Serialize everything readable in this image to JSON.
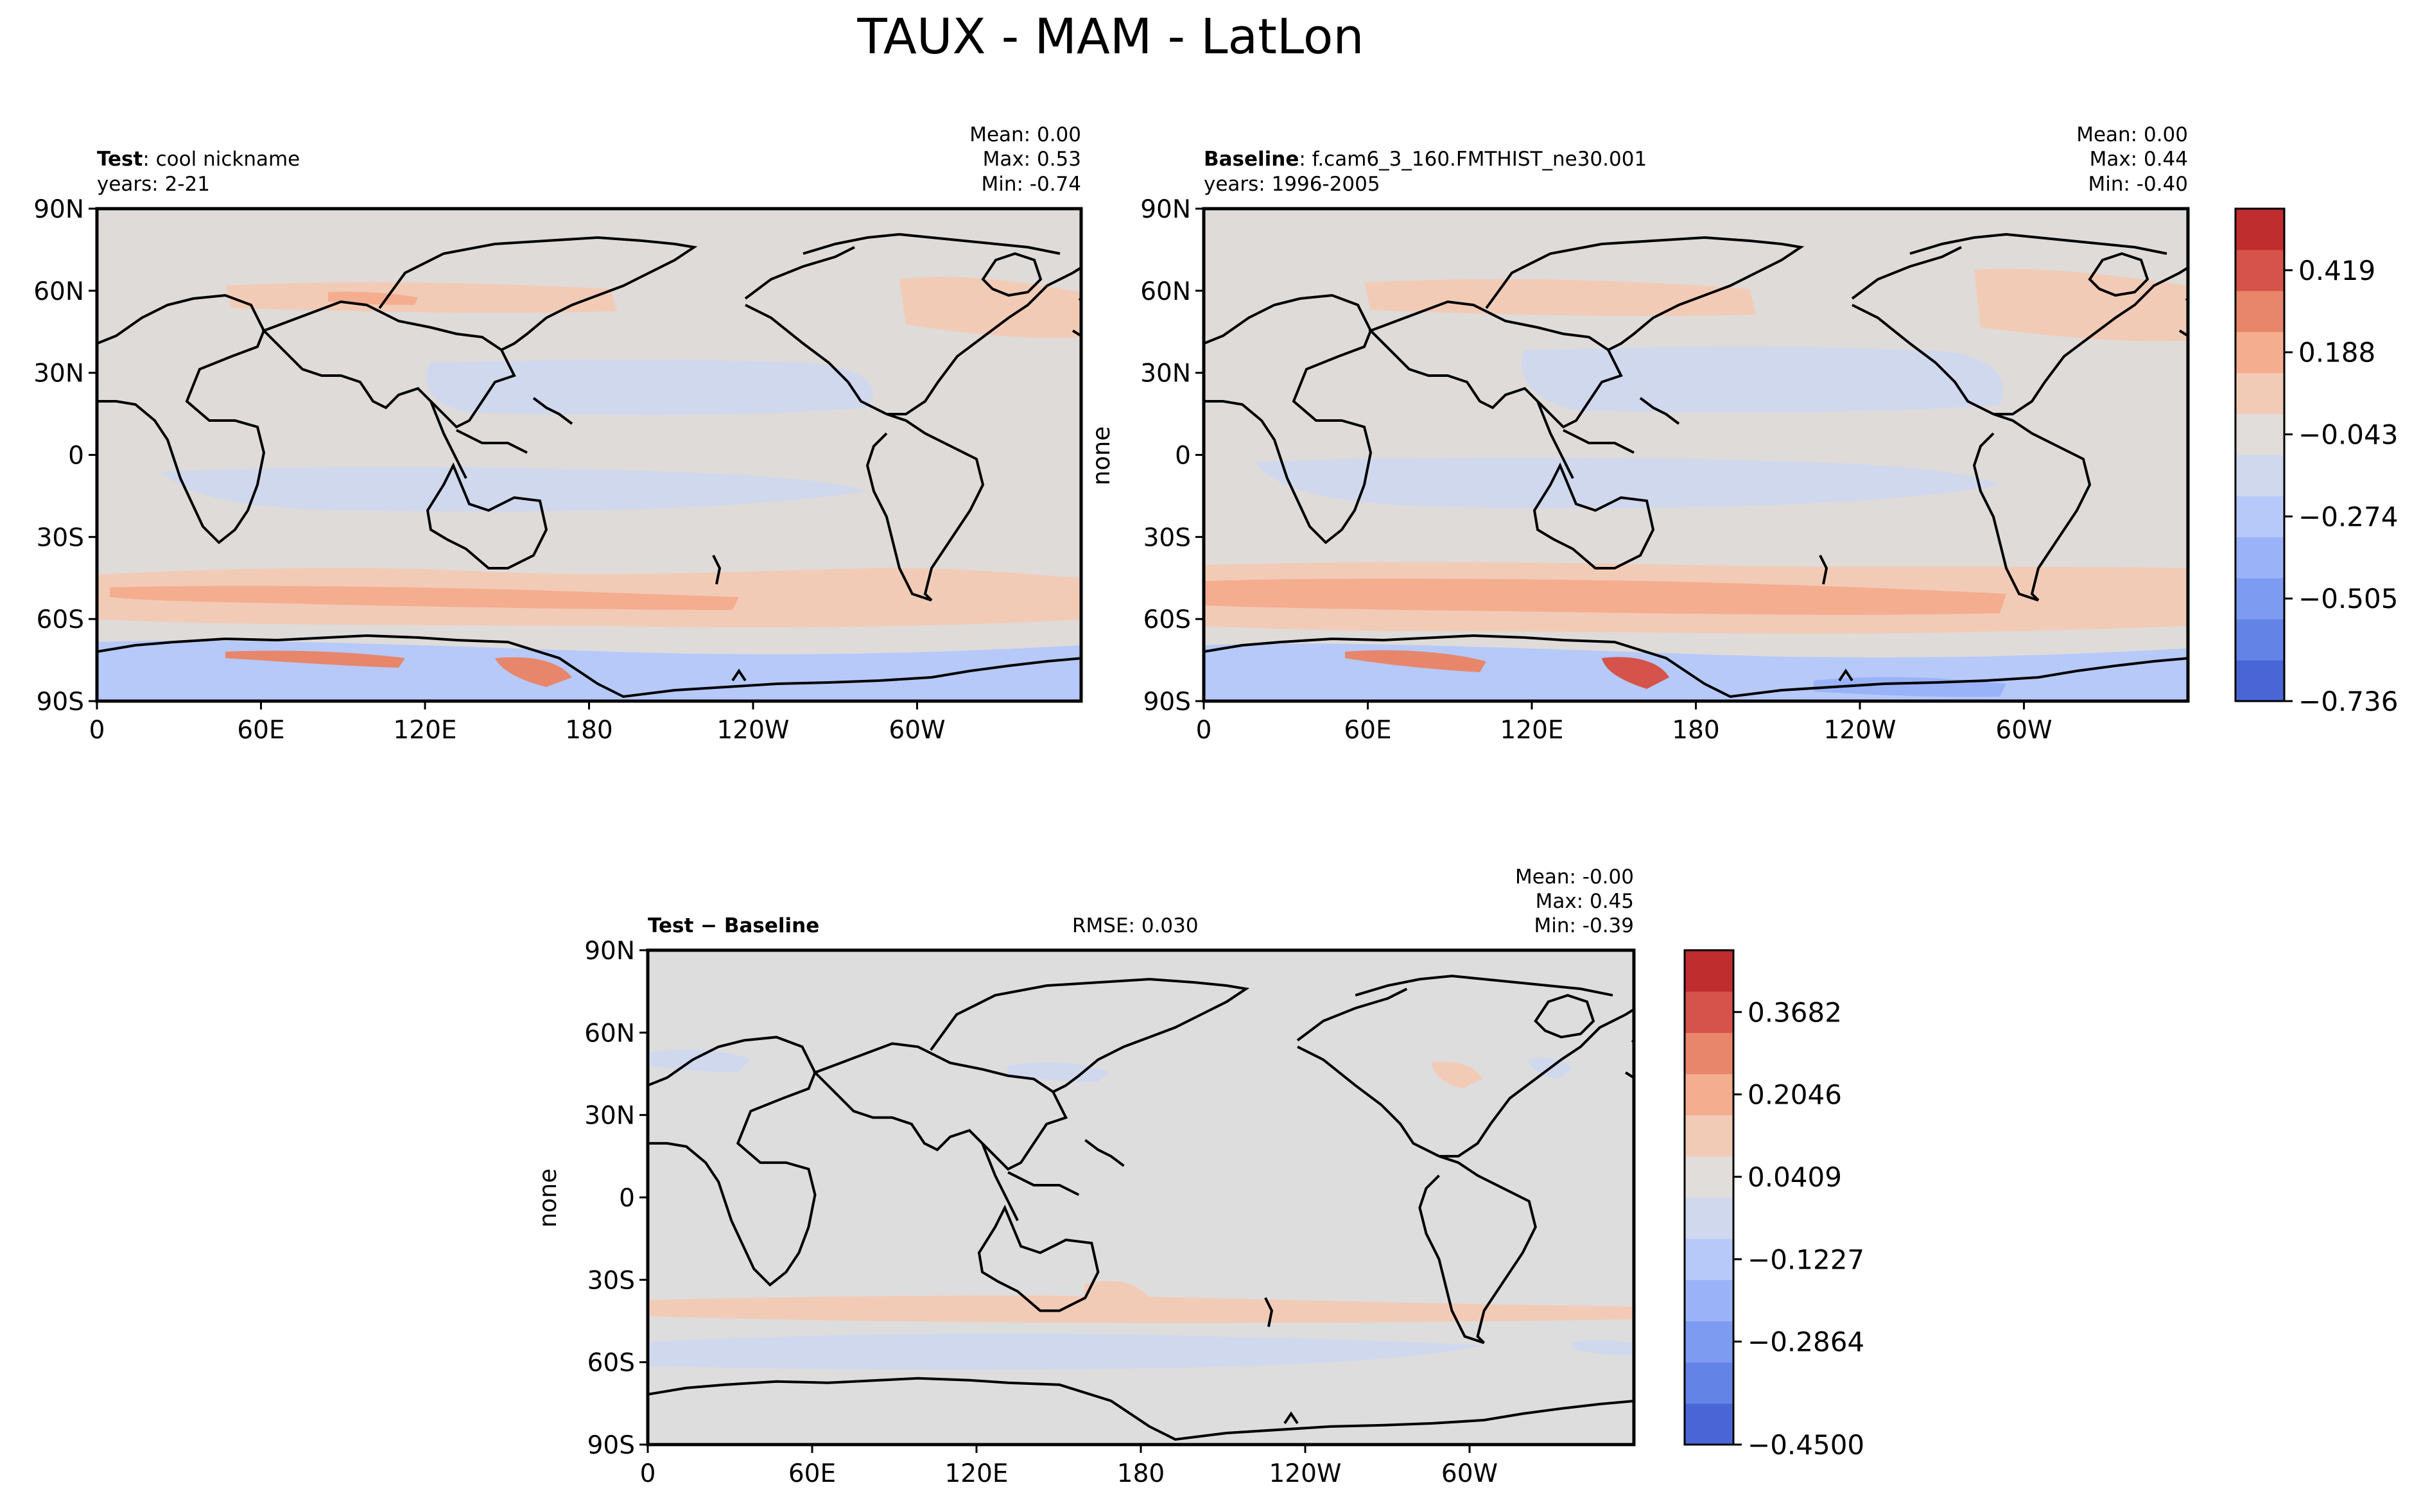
{
  "figure_title": "TAUX - MAM - LatLon",
  "colors": {
    "colorbar_levels": [
      "#4a66d6",
      "#6383e6",
      "#7e9bf2",
      "#9ab3f8",
      "#b6c9f8",
      "#d0d8ee",
      "#e0dddb",
      "#f2cbb7",
      "#f4ad8f",
      "#e8866b",
      "#d5534a",
      "#c02d2e"
    ],
    "map_background": "#dedbd9",
    "diff_background": "#dddddd",
    "coast": "#000000"
  },
  "chart_data": [
    {
      "type": "heatmap",
      "name_bold": "Test",
      "name_rest": ": cool nickname",
      "years": "years: 2-21",
      "ylabel": "",
      "stats": {
        "mean": "Mean:  0.00",
        "max": "Max:  0.53",
        "min": "Min: -0.74"
      },
      "x_ticks": [
        "0",
        "60E",
        "120E",
        "180",
        "120W",
        "60W"
      ],
      "y_ticks": [
        "90N",
        "60N",
        "30N",
        "0",
        "30S",
        "60S",
        "90S"
      ],
      "xlim": [
        0,
        360
      ],
      "ylim": [
        -90,
        90
      ]
    },
    {
      "type": "heatmap",
      "name_bold": "Baseline",
      "name_rest": ": f.cam6_3_160.FMTHIST_ne30.001",
      "years": "years: 1996-2005",
      "ylabel": "none",
      "stats": {
        "mean": "Mean:  0.00",
        "max": "Max:  0.44",
        "min": "Min: -0.40"
      },
      "x_ticks": [
        "0",
        "60E",
        "120E",
        "180",
        "120W",
        "60W"
      ],
      "y_ticks": [
        "90N",
        "60N",
        "30N",
        "0",
        "30S",
        "60S",
        "90S"
      ],
      "xlim": [
        0,
        360
      ],
      "ylim": [
        -90,
        90
      ],
      "colorbar": {
        "ticks": [
          "0.419",
          "0.188",
          "−0.043",
          "−0.274",
          "−0.505",
          "−0.736"
        ],
        "range": [
          -0.736,
          0.534
        ]
      }
    },
    {
      "type": "heatmap",
      "name_bold": "Test − Baseline",
      "rmse": "RMSE: 0.030",
      "ylabel": "none",
      "stats": {
        "mean": "Mean: -0.00",
        "max": "Max:  0.45",
        "min": "Min: -0.39"
      },
      "x_ticks": [
        "0",
        "60E",
        "120E",
        "180",
        "120W",
        "60W"
      ],
      "y_ticks": [
        "90N",
        "60N",
        "30N",
        "0",
        "30S",
        "60S",
        "90S"
      ],
      "xlim": [
        0,
        360
      ],
      "ylim": [
        -90,
        90
      ],
      "colorbar": {
        "ticks": [
          "0.3682",
          "0.2046",
          "0.0409",
          "−0.1227",
          "−0.2864",
          "−0.4500"
        ],
        "range": [
          -0.45,
          0.45
        ]
      }
    }
  ]
}
